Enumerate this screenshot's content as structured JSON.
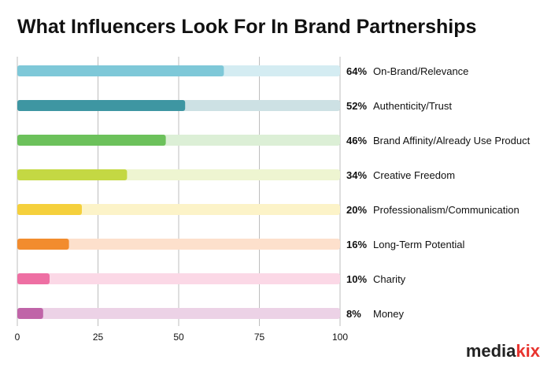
{
  "chart_data": {
    "type": "bar",
    "orientation": "horizontal",
    "title": "What Influencers Look For In Brand Partnerships",
    "categories": [
      "On-Brand/Relevance",
      "Authenticity/Trust",
      "Brand Affinity/Already Use Product",
      "Creative Freedom",
      "Professionalism/Communication",
      "Long-Term Potential",
      "Charity",
      "Money"
    ],
    "values": [
      64,
      52,
      46,
      34,
      20,
      16,
      10,
      8
    ],
    "value_labels": [
      "64%",
      "52%",
      "46%",
      "34%",
      "20%",
      "16%",
      "10%",
      "8%"
    ],
    "colors": [
      "#7ec8d8",
      "#3e96a2",
      "#6cc15b",
      "#c4d843",
      "#f5d03c",
      "#f28c2e",
      "#ee6fa3",
      "#c064a8"
    ],
    "track_colors": [
      "#d4ecf2",
      "#cde1e4",
      "#dcefd6",
      "#eef5d1",
      "#fcf3c8",
      "#fde0cc",
      "#fbd8e6",
      "#ecd2e6"
    ],
    "xlim": [
      0,
      100
    ],
    "xticks": [
      "0",
      "25",
      "50",
      "75",
      "100"
    ],
    "xlabel": "",
    "ylabel": "",
    "grid": true,
    "legend": "none"
  },
  "brand": {
    "logo_prefix": "media",
    "logo_suffix": "kix",
    "prefix_color": "#222222",
    "suffix_color": "#e8332e"
  }
}
